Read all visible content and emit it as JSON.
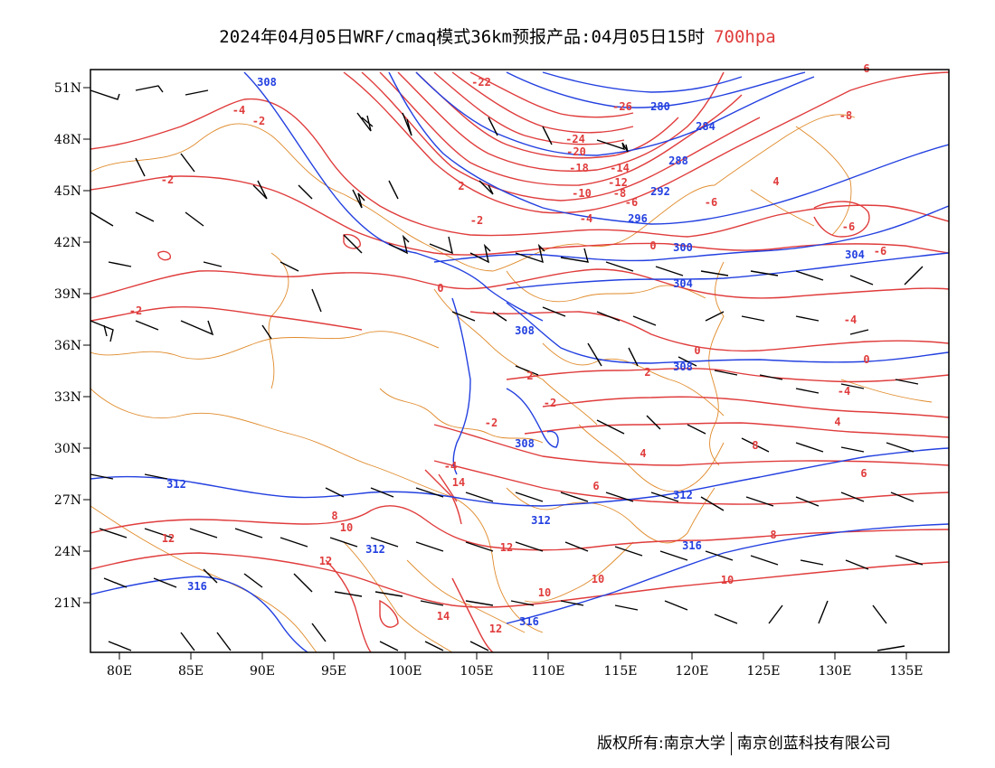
{
  "title": {
    "main": "2024年04月05日WRF/cmaq模式36km预报产品:04月05日15时",
    "level": "700hpa"
  },
  "colors": {
    "temperature": "#e03c3c",
    "height": "#2340e0",
    "borders": "#e08a2a",
    "wind": "#000000",
    "frame": "#000000"
  },
  "axes": {
    "lat_labels": [
      "51N",
      "48N",
      "45N",
      "42N",
      "39N",
      "36N",
      "33N",
      "30N",
      "27N",
      "24N",
      "21N"
    ],
    "lon_labels": [
      "80E",
      "85E",
      "90E",
      "95E",
      "100E",
      "105E",
      "110E",
      "115E",
      "120E",
      "125E",
      "130E",
      "135E"
    ]
  },
  "height_labels": [
    "308",
    "308",
    "308",
    "308",
    "304",
    "304",
    "300",
    "296",
    "292",
    "288",
    "284",
    "280",
    "312",
    "312",
    "312",
    "312",
    "316",
    "316",
    "316"
  ],
  "temp_labels": [
    "-22",
    "-26",
    "-24",
    "-20",
    "-18",
    "-14",
    "-12",
    "-10",
    "-8",
    "-6",
    "-4",
    "-2",
    "0",
    "2",
    "4",
    "6",
    "8",
    "10",
    "12",
    "14",
    "-4",
    "-2",
    "-2",
    "-2",
    "-8",
    "-6",
    "-4",
    "-6",
    "-6",
    "-4",
    "-2",
    "0",
    "2",
    "4",
    "6",
    "8",
    "10",
    "12",
    "10",
    "12",
    "14",
    "12",
    "10",
    "8",
    "6",
    "4",
    "2",
    "0",
    "-2",
    "-4",
    "0"
  ],
  "footer": {
    "left": "版权所有:南京大学",
    "right": "南京创蓝科技有限公司"
  }
}
